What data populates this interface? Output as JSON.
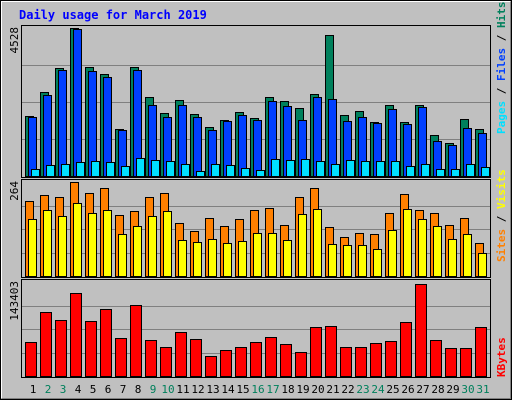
{
  "colors": {
    "frame_bg": "#c0c0c0",
    "panel_bg": "#c0c0c0",
    "title": "#0000ff",
    "hits": "#00805c",
    "files": "#0040ff",
    "pages": "#00e0ff",
    "visits": "#ffff00",
    "sites": "#ff8000",
    "kbytes": "#ff0000",
    "weekend_label": "#00805c",
    "weekday_label": "#000000"
  },
  "chart_data": {
    "type": "bar",
    "title": "Daily usage for March 2019",
    "categories": [
      "1",
      "2",
      "3",
      "4",
      "5",
      "6",
      "7",
      "8",
      "9",
      "10",
      "11",
      "12",
      "13",
      "14",
      "15",
      "16",
      "17",
      "18",
      "19",
      "20",
      "21",
      "22",
      "23",
      "24",
      "25",
      "26",
      "27",
      "28",
      "29",
      "30",
      "31"
    ],
    "weekend_days": [
      "2",
      "3",
      "9",
      "10",
      "16",
      "17",
      "23",
      "24",
      "30",
      "31"
    ],
    "panels": [
      {
        "id": "hits-files-pages",
        "ymax_label": "4528",
        "ymax": 4528,
        "legend": [
          {
            "text": "Pages",
            "color": "#00e0ff"
          },
          {
            "text": " / ",
            "color": "#000000"
          },
          {
            "text": "Files",
            "color": "#0040ff"
          },
          {
            "text": " / ",
            "color": "#000000"
          },
          {
            "text": "Hits",
            "color": "#00805c"
          }
        ],
        "series": [
          {
            "name": "Hits",
            "color": "#00805c",
            "values": [
              1850,
              2560,
              3290,
              4520,
              3340,
              3130,
              1450,
              3350,
              2430,
              1930,
              2330,
              1900,
              1490,
              1710,
              1960,
              1780,
              2420,
              2300,
              2080,
              2500,
              4300,
              1880,
              1990,
              1660,
              2160,
              1640,
              2180,
              1250,
              1000,
              1750,
              1430
            ]
          },
          {
            "name": "Files",
            "color": "#0040ff",
            "values": [
              1810,
              2480,
              3250,
              4500,
              3220,
              3040,
              1420,
              3230,
              2170,
              1810,
              2160,
              1790,
              1420,
              1680,
              1880,
              1720,
              2300,
              2140,
              1720,
              2420,
              2350,
              1690,
              1810,
              1610,
              2040,
              1580,
              2100,
              1080,
              950,
              1480,
              1310
            ]
          },
          {
            "name": "Pages",
            "color": "#00e0ff",
            "values": [
              210,
              330,
              380,
              420,
              450,
              420,
              300,
              550,
              480,
              450,
              360,
              150,
              360,
              330,
              260,
              180,
              530,
              480,
              510,
              470,
              380,
              480,
              470,
              470,
              460,
              320,
              370,
              200,
              200,
              380,
              280
            ]
          }
        ]
      },
      {
        "id": "visits-sites",
        "ymax_label": "264",
        "ymax": 264,
        "legend": [
          {
            "text": "Sites",
            "color": "#ff8000"
          },
          {
            "text": " / ",
            "color": "#000000"
          },
          {
            "text": "Visits",
            "color": "#ffff00"
          }
        ],
        "series": [
          {
            "name": "Sites",
            "color": "#ff8000",
            "values": [
              210,
              228,
              223,
              264,
              233,
              248,
              172,
              183,
              221,
              233,
              148,
              126,
              162,
              140,
              161,
              185,
              192,
              144,
              222,
              247,
              137,
              110,
              122,
              117,
              177,
              230,
              184,
              178,
              143,
              162,
              93
            ]
          },
          {
            "name": "Visits",
            "color": "#ffff00",
            "values": [
              160,
              186,
              169,
              205,
              178,
              184,
              119,
              140,
              169,
              182,
              100,
              96,
              103,
              92,
              97,
              120,
              121,
              100,
              175,
              188,
              90,
              86,
              88,
              75,
              128,
              187,
              160,
              140,
              105,
              118,
              64
            ]
          }
        ]
      },
      {
        "id": "kbytes",
        "ymax_label": "143403",
        "ymax": 143403,
        "legend": [
          {
            "text": "KBytes",
            "color": "#ff0000"
          }
        ],
        "series": [
          {
            "name": "KBytes",
            "color": "#ff0000",
            "values": [
              52000,
              97000,
              85000,
              126000,
              84000,
              102000,
              58000,
              108000,
              55000,
              45000,
              67000,
              56000,
              31000,
              40000,
              44000,
              52000,
              59000,
              49000,
              36000,
              75000,
              76000,
              45000,
              44000,
              50000,
              53000,
              82000,
              141000,
              55000,
              42000,
              43000,
              74000
            ]
          }
        ]
      }
    ]
  }
}
